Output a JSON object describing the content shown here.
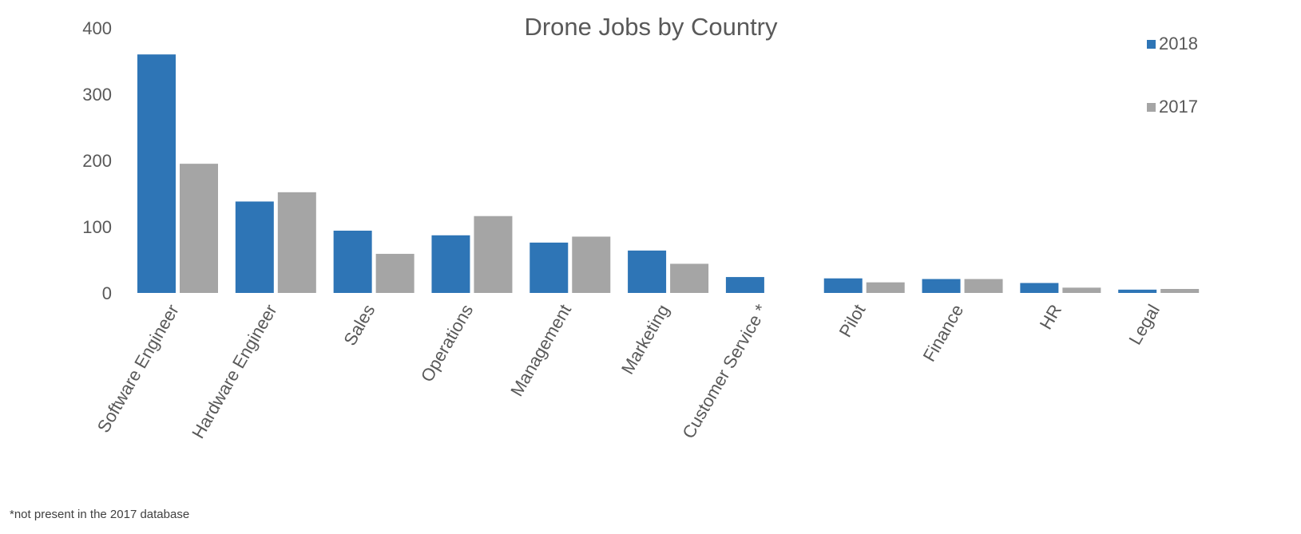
{
  "chart_data": {
    "type": "bar",
    "title": "Drone Jobs by Country",
    "xlabel": "",
    "ylabel": "",
    "categories": [
      "Software Engineer",
      "Hardware Engineer",
      "Sales",
      "Operations",
      "Management",
      "Marketing",
      "Customer Service *",
      "Pilot",
      "Finance",
      "HR",
      "Legal"
    ],
    "series": [
      {
        "name": "2018",
        "color": "#2e75b6",
        "values": [
          360,
          138,
          94,
          87,
          76,
          64,
          24,
          22,
          21,
          15,
          5
        ]
      },
      {
        "name": "2017",
        "color": "#a5a5a5",
        "values": [
          195,
          152,
          59,
          116,
          85,
          44,
          null,
          16,
          21,
          8,
          6
        ]
      }
    ],
    "ylim": [
      0,
      400
    ],
    "yticks": [
      0,
      100,
      200,
      300,
      400
    ],
    "grid": false,
    "legend_position": "top-right",
    "footnote": "*not present in the 2017 database"
  }
}
